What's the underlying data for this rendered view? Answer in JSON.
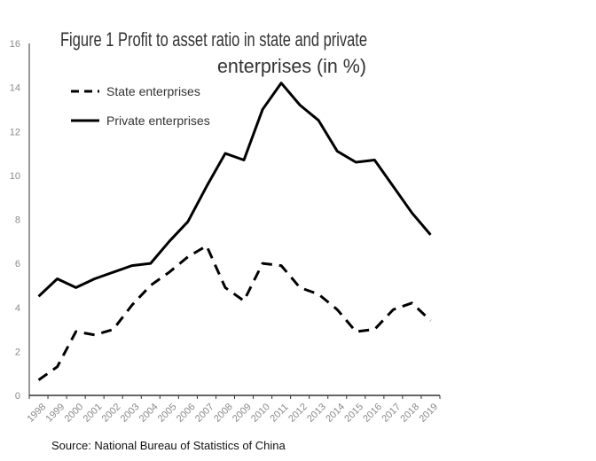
{
  "chart_data": {
    "type": "line",
    "title_line1": "Figure 1 Profit to asset ratio in state and private",
    "title_line2": "enterprises (in %)",
    "categories": [
      "1998",
      "1999",
      "2000",
      "2001",
      "2002",
      "2003",
      "2004",
      "2005",
      "2006",
      "2007",
      "2008",
      "2009",
      "2010",
      "2011",
      "2012",
      "2013",
      "2014",
      "2015",
      "2016",
      "2017",
      "2018",
      "2019"
    ],
    "series": [
      {
        "name": "State enterprises",
        "style": "dashed",
        "color": "#000000",
        "values": [
          0.7,
          1.3,
          2.9,
          2.75,
          3.0,
          4.1,
          5.0,
          5.6,
          6.3,
          6.8,
          4.9,
          4.3,
          6.0,
          5.9,
          4.9,
          4.6,
          3.9,
          2.9,
          3.0,
          3.9,
          4.2,
          3.4
        ]
      },
      {
        "name": "Private enterprises",
        "style": "solid",
        "color": "#000000",
        "values": [
          4.5,
          5.3,
          4.9,
          5.3,
          5.6,
          5.9,
          6.0,
          7.0,
          7.9,
          9.5,
          11.0,
          10.7,
          13.0,
          14.2,
          13.2,
          12.5,
          11.1,
          10.6,
          10.7,
          9.5,
          8.3,
          7.3
        ]
      }
    ],
    "ylim": [
      0,
      16
    ],
    "yticks": [
      "0",
      "2",
      "4",
      "6",
      "8",
      "10",
      "12",
      "14",
      "16"
    ],
    "grid": false,
    "legend": "top-left",
    "source": "Source: National Bureau of Statistics of China"
  }
}
